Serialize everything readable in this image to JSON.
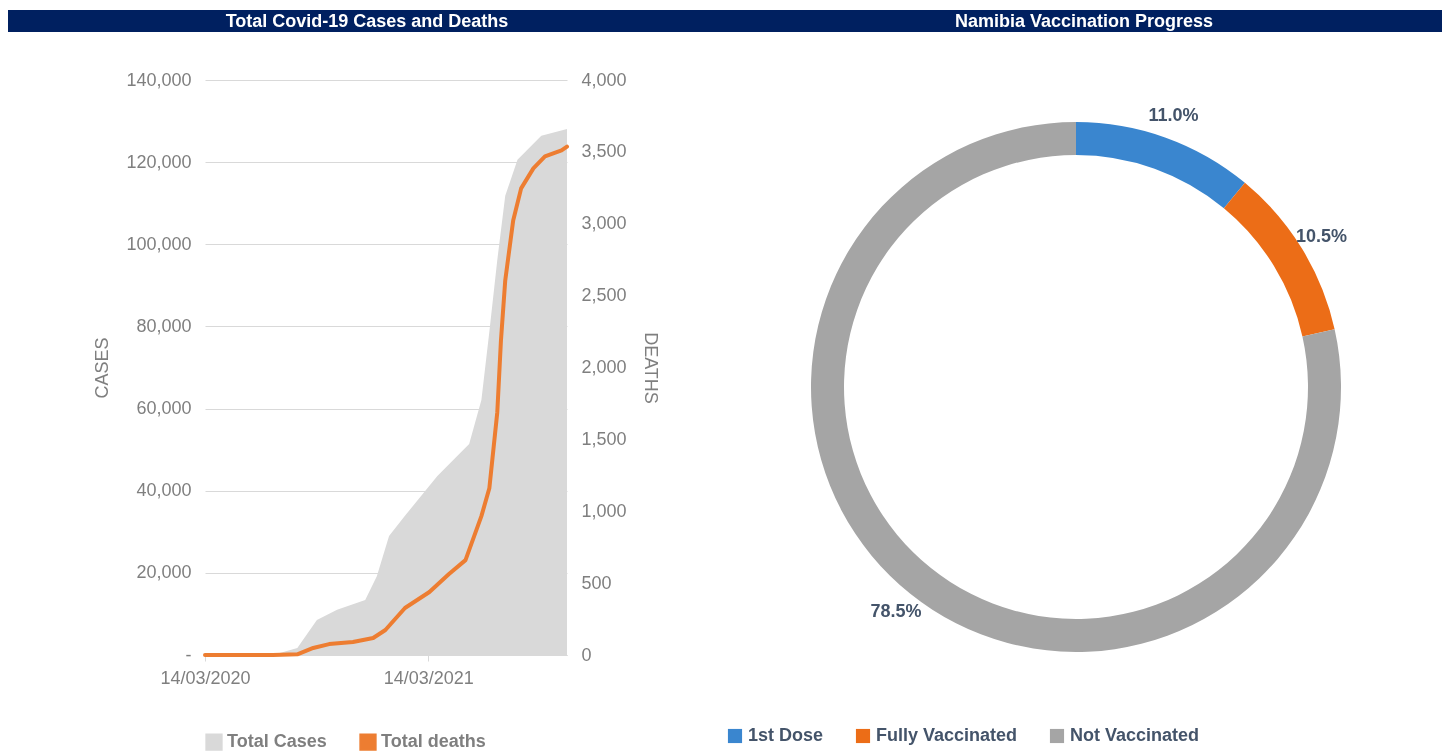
{
  "chart_data": [
    {
      "type": "area",
      "title": "Total Covid-19 Cases and Deaths",
      "ylabel": "CASES",
      "y2label": "DEATHS",
      "xlim": [
        "2020-03-14",
        "2021-10-27"
      ],
      "xticks": [
        {
          "value": "2020-03-14",
          "label": "14/03/2020"
        },
        {
          "value": "2021-03-14",
          "label": "14/03/2021"
        }
      ],
      "ylim": [
        0,
        140000
      ],
      "yticks": [
        {
          "value": 0,
          "label": "-"
        },
        {
          "value": 20000,
          "label": "20,000"
        },
        {
          "value": 40000,
          "label": "40,000"
        },
        {
          "value": 60000,
          "label": "60,000"
        },
        {
          "value": 80000,
          "label": "80,000"
        },
        {
          "value": 100000,
          "label": "100,000"
        },
        {
          "value": 120000,
          "label": "120,000"
        },
        {
          "value": 140000,
          "label": "140,000"
        }
      ],
      "y2lim": [
        0,
        4000
      ],
      "y2ticks": [
        0,
        500,
        {
          "value": 1000,
          "label": "1,000"
        },
        {
          "value": 1500,
          "label": "1,500"
        },
        {
          "value": 2000,
          "label": "2,000"
        },
        {
          "value": 2500,
          "label": "2,500"
        },
        {
          "value": 3000,
          "label": "3,000"
        },
        {
          "value": 3500,
          "label": "3,500"
        },
        {
          "value": 4000,
          "label": "4,000"
        }
      ],
      "grid": "y",
      "legend": "bottom",
      "series": [
        {
          "name": "Total Cases",
          "type": "area",
          "color": "#d9d9d9",
          "x": [
            "2020-03-14",
            "2020-07-03",
            "2020-08-12",
            "2020-09-13",
            "2020-10-16",
            "2020-12-01",
            "2020-12-20",
            "2021-01-09",
            "2021-02-04",
            "2021-03-29",
            "2021-05-20",
            "2021-06-09",
            "2021-06-22",
            "2021-07-05",
            "2021-07-18",
            "2021-08-07",
            "2021-09-15",
            "2021-10-27"
          ],
          "values": [
            0,
            0,
            1700,
            8500,
            11000,
            13400,
            19200,
            29000,
            33900,
            43600,
            51400,
            62100,
            78700,
            96200,
            111800,
            120600,
            126400,
            128100
          ]
        },
        {
          "name": "Total deaths",
          "type": "line",
          "axis": "y2",
          "color": "#ed7d31",
          "x": [
            "2020-03-14",
            "2020-07-03",
            "2020-08-12",
            "2020-09-07",
            "2020-10-03",
            "2020-11-11",
            "2020-12-14",
            "2021-01-03",
            "2021-02-04",
            "2021-03-16",
            "2021-04-17",
            "2021-05-14",
            "2021-06-09",
            "2021-06-22",
            "2021-07-05",
            "2021-07-11",
            "2021-07-18",
            "2021-07-31",
            "2021-08-13",
            "2021-09-02",
            "2021-09-21",
            "2021-10-18",
            "2021-10-27"
          ],
          "values": [
            0,
            0,
            5,
            49,
            76,
            90,
            118,
            174,
            327,
            438,
            563,
            660,
            966,
            1160,
            1689,
            2189,
            2606,
            3023,
            3246,
            3385,
            3468,
            3510,
            3537
          ]
        }
      ]
    },
    {
      "type": "donut",
      "title": "Namibia Vaccination Progress",
      "legend": "bottom",
      "categories": [
        "1st Dose",
        "Fully Vaccinated",
        "Not Vaccinated"
      ],
      "values": [
        11.0,
        10.5,
        78.5
      ],
      "colors": [
        "#3a86cf",
        "#ec6d17",
        "#a5a5a5"
      ],
      "value_labels": [
        "11.0%",
        "10.5%",
        "78.5%"
      ]
    }
  ]
}
